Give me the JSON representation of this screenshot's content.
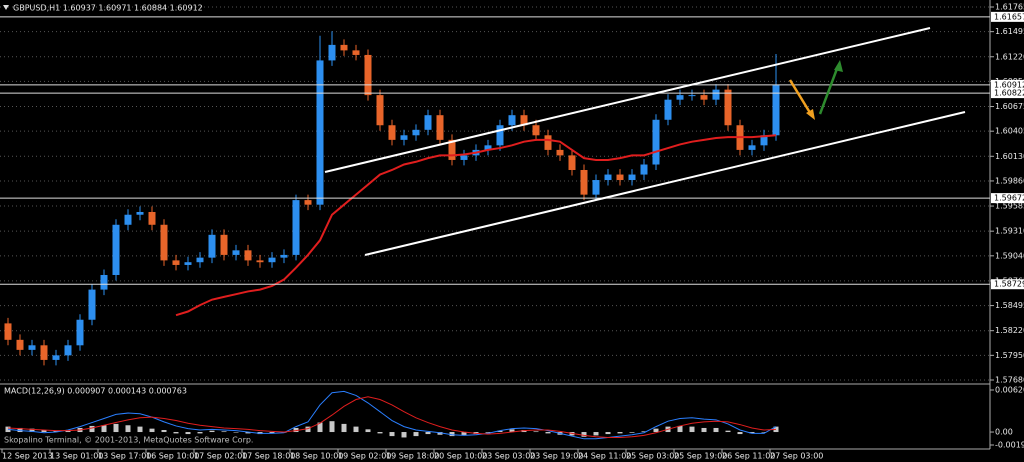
{
  "chart_data": [
    {
      "type": "candlestick",
      "title": "GBPUSD,H1 1.60937 1.60971 1.60884 1.60912",
      "categories": [
        "12 Sep 2013",
        null,
        null,
        null,
        "13 Sep 01:00",
        null,
        null,
        null,
        "13 Sep 17:00",
        null,
        null,
        null,
        "16 Sep 10:00",
        null,
        null,
        null,
        "17 Sep 02:00",
        null,
        null,
        null,
        "17 Sep 18:00",
        null,
        null,
        null,
        "18 Sep 10:00",
        null,
        null,
        null,
        "19 Sep 02:00",
        null,
        null,
        null,
        "19 Sep 18:00",
        null,
        null,
        null,
        "20 Sep 10:00",
        null,
        null,
        null,
        "23 Sep 03:00",
        null,
        null,
        null,
        "23 Sep 19:00",
        null,
        null,
        null,
        "24 Sep 11:00",
        null,
        null,
        null,
        "25 Sep 03:00",
        null,
        null,
        null,
        "25 Sep 19:00",
        null,
        null,
        null,
        "26 Sep 11:00",
        null,
        null,
        null,
        "27 Sep 03:00"
      ],
      "open": [
        1.583,
        1.5812,
        1.5801,
        1.5806,
        1.579,
        1.5795,
        1.5806,
        1.5834,
        1.5867,
        1.5883,
        1.5938,
        1.5949,
        1.5952,
        1.5938,
        1.5899,
        1.5894,
        1.5897,
        1.5902,
        1.5927,
        1.5905,
        1.591,
        1.5899,
        1.5897,
        1.5902,
        1.5905,
        1.5965,
        1.596,
        1.6118,
        1.6135,
        1.6129,
        1.6124,
        1.608,
        1.6047,
        1.6031,
        1.6036,
        1.6042,
        1.6058,
        1.6031,
        1.6009,
        1.6014,
        1.602,
        1.6025,
        1.6047,
        1.6058,
        1.6047,
        1.6036,
        1.602,
        1.6014,
        1.5998,
        1.5971,
        1.5987,
        1.5993,
        1.5987,
        1.5993,
        1.6004,
        1.6053,
        1.6075,
        1.608,
        1.608,
        1.6075,
        1.6086,
        1.6047,
        1.602,
        1.6025,
        1.6036
      ],
      "high": [
        1.5836,
        1.5818,
        1.5812,
        1.5812,
        1.5801,
        1.5812,
        1.584,
        1.5873,
        1.5889,
        1.5944,
        1.5955,
        1.5958,
        1.5958,
        1.5944,
        1.5905,
        1.5903,
        1.5908,
        1.5933,
        1.5933,
        1.5916,
        1.5916,
        1.5905,
        1.5908,
        1.5911,
        1.5971,
        1.5971,
        1.6145,
        1.615,
        1.6141,
        1.6135,
        1.613,
        1.6086,
        1.6053,
        1.6042,
        1.6048,
        1.6064,
        1.6064,
        1.6037,
        1.602,
        1.6026,
        1.6031,
        1.6053,
        1.6064,
        1.6064,
        1.6053,
        1.6042,
        1.6026,
        1.602,
        1.6004,
        1.5993,
        1.5999,
        1.5999,
        1.5999,
        1.601,
        1.6059,
        1.6081,
        1.6086,
        1.6086,
        1.6086,
        1.6092,
        1.6092,
        1.6053,
        1.6031,
        1.6042,
        1.6125
      ],
      "low": [
        1.5806,
        1.5795,
        1.5795,
        1.5784,
        1.5784,
        1.5789,
        1.58,
        1.5828,
        1.5861,
        1.5877,
        1.5932,
        1.5943,
        1.5932,
        1.5893,
        1.5888,
        1.5888,
        1.5891,
        1.5896,
        1.5899,
        1.5899,
        1.5893,
        1.5891,
        1.5891,
        1.5896,
        1.5899,
        1.5954,
        1.5954,
        1.6112,
        1.6123,
        1.6118,
        1.6074,
        1.6041,
        1.6025,
        1.6025,
        1.603,
        1.6036,
        1.6025,
        1.6003,
        1.6003,
        1.6008,
        1.6014,
        1.6019,
        1.6041,
        1.6041,
        1.603,
        1.6014,
        1.6008,
        1.5992,
        1.5965,
        1.5965,
        1.5981,
        1.5981,
        1.5981,
        1.5987,
        1.5998,
        1.6047,
        1.6069,
        1.6074,
        1.6069,
        1.6069,
        1.6041,
        1.6014,
        1.6014,
        1.6019,
        1.603
      ],
      "close": [
        1.5812,
        1.5801,
        1.5806,
        1.579,
        1.5795,
        1.5806,
        1.5834,
        1.5867,
        1.5883,
        1.5938,
        1.5949,
        1.5952,
        1.5938,
        1.5899,
        1.5894,
        1.5897,
        1.5902,
        1.5927,
        1.5905,
        1.591,
        1.5899,
        1.5897,
        1.5902,
        1.5905,
        1.5965,
        1.596,
        1.6118,
        1.6135,
        1.6129,
        1.6124,
        1.608,
        1.6047,
        1.6031,
        1.6036,
        1.6042,
        1.6058,
        1.6031,
        1.6009,
        1.6014,
        1.602,
        1.6025,
        1.6047,
        1.6058,
        1.6047,
        1.6036,
        1.602,
        1.6014,
        1.5998,
        1.5971,
        1.5987,
        1.5993,
        1.5987,
        1.5993,
        1.6004,
        1.6053,
        1.6075,
        1.608,
        1.608,
        1.6075,
        1.6086,
        1.6047,
        1.602,
        1.6025,
        1.6036,
        1.6091
      ],
      "up_color": "#2d8ff0",
      "down_color": "#e8652a",
      "series": [
        {
          "color": "#e01e1e",
          "values": [
            null,
            null,
            null,
            null,
            null,
            null,
            null,
            null,
            null,
            null,
            null,
            null,
            null,
            null,
            1.5839,
            1.5843,
            1.585,
            1.5856,
            1.5859,
            1.5862,
            1.5865,
            1.5867,
            1.5871,
            1.5878,
            1.5891,
            1.5905,
            1.5921,
            1.5949,
            1.596,
            1.5971,
            1.5982,
            1.5993,
            1.5998,
            1.6004,
            1.6007,
            1.6011,
            1.6014,
            1.6014,
            1.6015,
            1.6017,
            1.602,
            1.6022,
            1.6025,
            1.6029,
            1.6031,
            1.6031,
            1.6029,
            1.602,
            1.6011,
            1.6009,
            1.6009,
            1.6011,
            1.6014,
            1.6014,
            1.6018,
            1.6022,
            1.6026,
            1.6029,
            1.6031,
            1.6033,
            1.6034,
            1.6034,
            1.6034,
            1.6035,
            1.6036
          ]
        }
      ],
      "levels": [
        1.61657,
        1.60912,
        1.60822,
        1.59672,
        1.58729
      ],
      "ylim": [
        1.5768,
        1.61765
      ],
      "yticks": [
        1.61765,
        1.61495,
        {
          "value": 1.6122,
          "label": "1.61220"
        },
        {
          "value": 1.6095,
          "label": "1.60950"
        },
        1.60675,
        1.60405,
        {
          "value": 1.6013,
          "label": "1.60130"
        },
        {
          "value": 1.5986,
          "label": "1.59860"
        },
        1.59585,
        {
          "value": 1.5931,
          "label": "1.59310"
        },
        {
          "value": 1.5904,
          "label": "1.59040"
        },
        1.58765,
        1.58495,
        {
          "value": 1.5822,
          "label": "1.58220"
        },
        {
          "value": 1.5795,
          "label": "1.57950"
        },
        {
          "value": 1.5768,
          "label": "1.57680"
        }
      ],
      "grid": true
    },
    {
      "type": "macd",
      "title": "MACD(12,26,9) 0.000907 0.000143 0.000763",
      "annotation": "Skopalino Terminal, © 2001-2013, MetaQuotes Software Corp.",
      "histogram": {
        "color": "#c8c8c8",
        "values": [
          0.0008,
          0.0006,
          0.0005,
          0.0003,
          0.0002,
          0.0003,
          0.0006,
          0.0009,
          0.001,
          0.0012,
          0.001,
          0.0008,
          0.0005,
          0.0003,
          -0.0002,
          -0.0003,
          -0.0002,
          0.0002,
          0.0001,
          0.0,
          -0.0002,
          -0.0003,
          -0.0002,
          -0.0001,
          0.0006,
          0.0008,
          0.0014,
          0.0016,
          0.0012,
          0.0008,
          0.0004,
          -0.0002,
          -0.0006,
          -0.0008,
          -0.0006,
          -0.0003,
          -0.0004,
          -0.0006,
          -0.0005,
          -0.0003,
          -0.0001,
          0.0002,
          0.0004,
          0.0003,
          0.0001,
          -0.0002,
          -0.0004,
          -0.0005,
          -0.0007,
          -0.0005,
          -0.0003,
          -0.0002,
          -0.0001,
          0.0001,
          0.0005,
          0.0008,
          0.0009,
          0.0008,
          0.0006,
          0.0006,
          0.0002,
          -0.0003,
          -0.0002,
          0.0,
          0.0008
        ]
      },
      "series": [
        {
          "color": "#2a7fff",
          "values": [
            0.0004,
            0.0002,
            0.0001,
            -0.0001,
            0.0,
            0.0003,
            0.0008,
            0.0014,
            0.002,
            0.0026,
            0.0028,
            0.0027,
            0.0022,
            0.0015,
            0.0009,
            0.0005,
            0.0003,
            0.0004,
            0.0003,
            0.0002,
            0.0,
            -0.0002,
            -0.0002,
            -0.0001,
            0.0008,
            0.0015,
            0.004,
            0.0058,
            0.006,
            0.0054,
            0.0043,
            0.003,
            0.0017,
            0.0008,
            0.0003,
            0.0001,
            -0.0001,
            -0.0004,
            -0.0005,
            -0.0004,
            -0.0002,
            0.0002,
            0.0005,
            0.0006,
            0.0005,
            0.0002,
            -0.0002,
            -0.0006,
            -0.001,
            -0.001,
            -0.0008,
            -0.0006,
            -0.0004,
            -0.0001,
            0.0008,
            0.0016,
            0.002,
            0.0021,
            0.0019,
            0.0018,
            0.0012,
            0.0003,
            -0.0002,
            -0.0002,
            0.0008
          ]
        },
        {
          "color": "#e01e1e",
          "values": [
            0.0006,
            0.0005,
            0.0004,
            0.0003,
            0.0002,
            0.0002,
            0.0003,
            0.0006,
            0.001,
            0.0014,
            0.0018,
            0.0021,
            0.0022,
            0.002,
            0.0017,
            0.0013,
            0.001,
            0.0008,
            0.0006,
            0.0005,
            0.0004,
            0.0002,
            0.0001,
            0.0,
            0.0002,
            0.0005,
            0.0013,
            0.0025,
            0.0038,
            0.0048,
            0.0052,
            0.0048,
            0.004,
            0.003,
            0.0021,
            0.0014,
            0.0008,
            0.0003,
            0.0,
            -0.0002,
            -0.0003,
            -0.0002,
            0.0,
            0.0002,
            0.0003,
            0.0003,
            0.0001,
            -0.0002,
            -0.0005,
            -0.0007,
            -0.0008,
            -0.0008,
            -0.0007,
            -0.0005,
            -0.0001,
            0.0004,
            0.0009,
            0.0013,
            0.0015,
            0.0016,
            0.0015,
            0.0011,
            0.0006,
            0.0003,
            0.0004
          ]
        }
      ],
      "ylim": [
        -0.001914,
        0.006204
      ],
      "yticks": [
        0.006204,
        {
          "value": 0,
          "label": "0.00"
        },
        -0.001914
      ]
    }
  ]
}
